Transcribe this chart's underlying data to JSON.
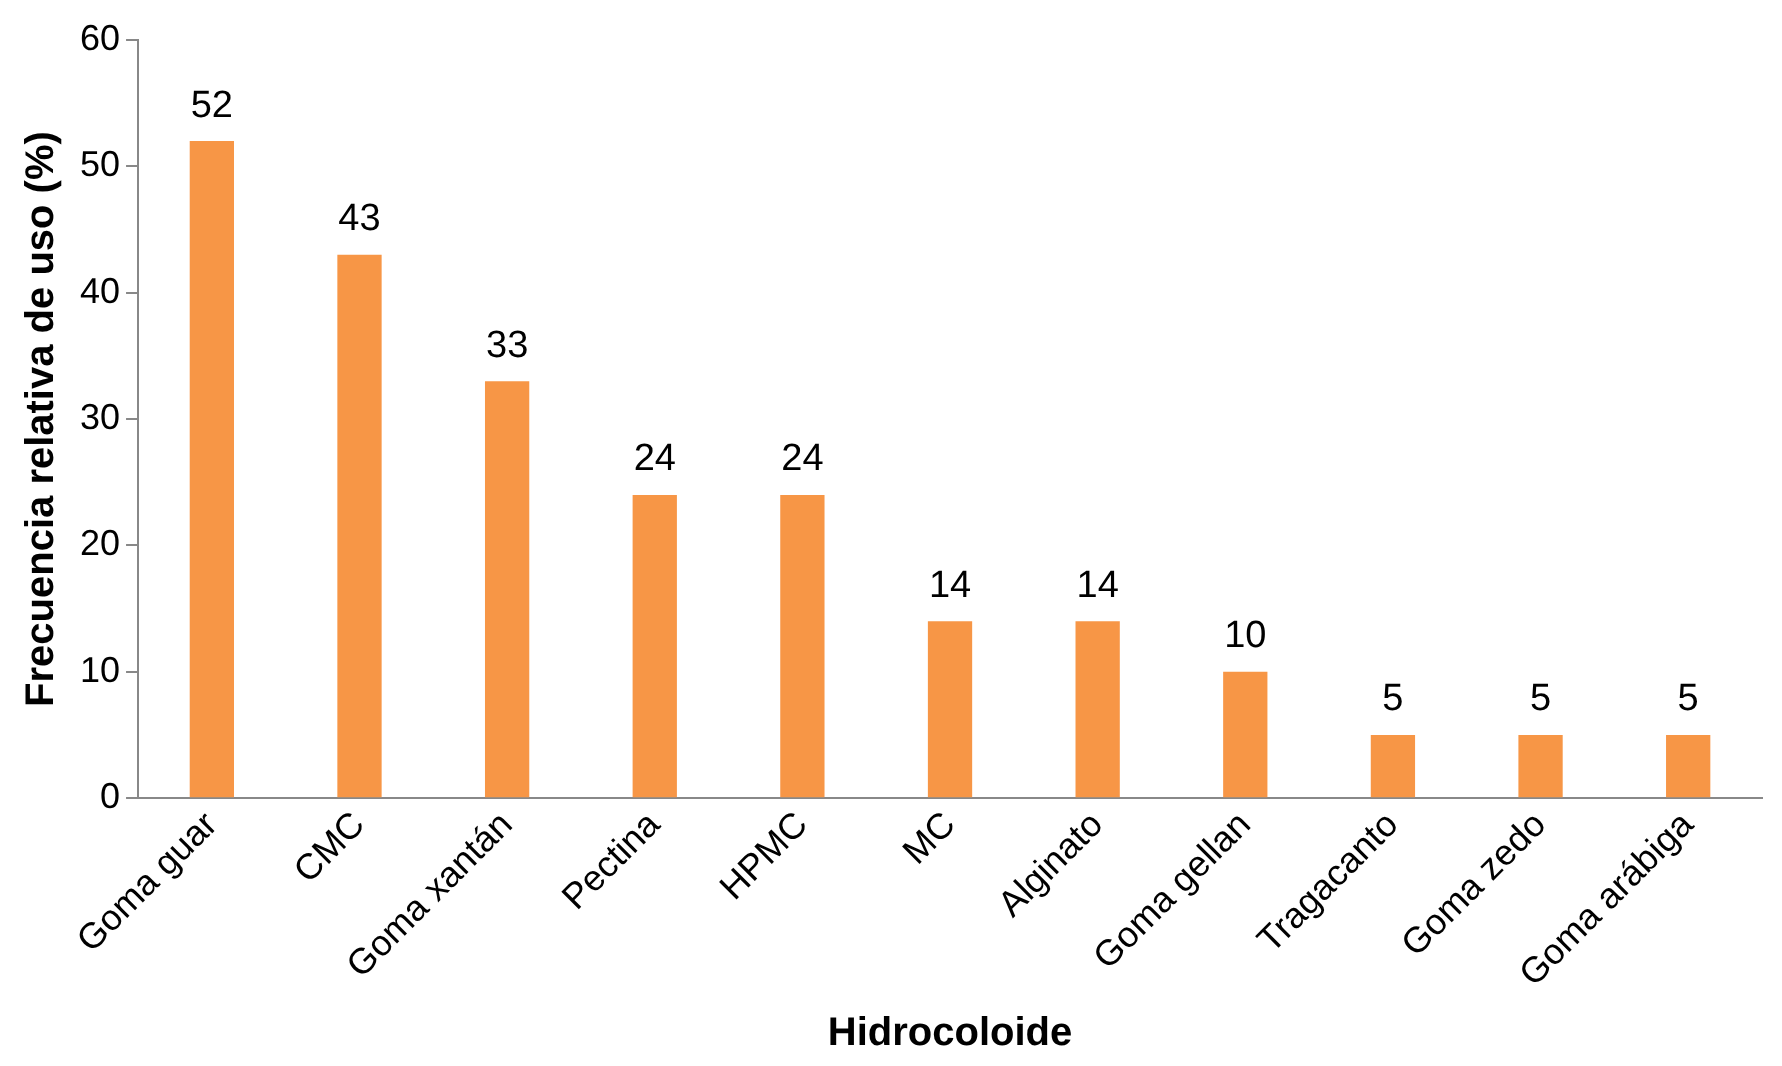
{
  "chart_data": {
    "type": "bar",
    "xlabel": "Hidrocoloide",
    "ylabel": "Frecuencia relativa de uso (%)",
    "categories": [
      "Goma guar",
      "CMC",
      "Goma xantán",
      "Pectina",
      "HPMC",
      "MC",
      "Alginato",
      "Goma gellan",
      "Tragacanto",
      "Goma zedo",
      "Goma arábiga"
    ],
    "values": [
      52,
      43,
      33,
      24,
      24,
      14,
      14,
      10,
      5,
      5,
      5
    ],
    "color": "#f79646",
    "ylim": [
      0,
      60
    ],
    "yticks": [
      0,
      10,
      20,
      30,
      40,
      50,
      60
    ],
    "data_labels": true,
    "grid": false,
    "legend": false
  }
}
